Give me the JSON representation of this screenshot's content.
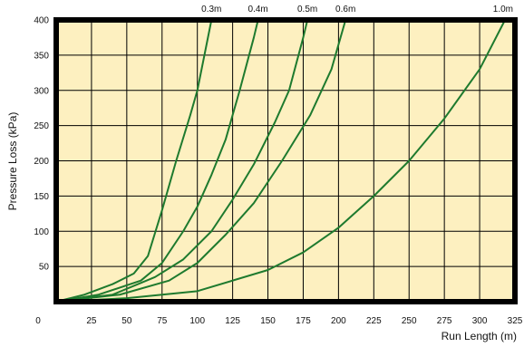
{
  "chart_data": {
    "type": "line",
    "title": "",
    "xlabel": "Run Length (m)",
    "ylabel": "Pressure Loss (kPa)",
    "xlim": [
      0,
      325
    ],
    "ylim": [
      0,
      400
    ],
    "x_ticks": [
      "0",
      "25",
      "50",
      "75",
      "100",
      "125",
      "150",
      "175",
      "200",
      "225",
      "250",
      "275",
      "300",
      "325"
    ],
    "y_ticks": [
      "50",
      "100",
      "150",
      "200",
      "250",
      "300",
      "350",
      "400"
    ],
    "grid": true,
    "colors": {
      "plot_background": "#fdf0c0",
      "line": "#1e7a2e",
      "frame": "#000000",
      "grid": "#000000"
    },
    "series": [
      {
        "name": "0.3m",
        "x": [
          0,
          20,
          40,
          55,
          65,
          75,
          85,
          95,
          100,
          105,
          110
        ],
        "y": [
          0,
          10,
          25,
          40,
          65,
          130,
          200,
          265,
          300,
          350,
          400
        ]
      },
      {
        "name": "0.4m",
        "x": [
          0,
          30,
          60,
          75,
          90,
          100,
          110,
          120,
          130,
          140,
          143
        ],
        "y": [
          0,
          10,
          30,
          55,
          100,
          135,
          180,
          230,
          300,
          375,
          400
        ]
      },
      {
        "name": "0.5m",
        "x": [
          0,
          40,
          70,
          90,
          110,
          125,
          140,
          155,
          165,
          175,
          178
        ],
        "y": [
          0,
          10,
          35,
          60,
          100,
          145,
          195,
          255,
          300,
          375,
          400
        ]
      },
      {
        "name": "0.6m",
        "x": [
          0,
          45,
          80,
          100,
          120,
          140,
          160,
          180,
          195,
          205
        ],
        "y": [
          0,
          10,
          30,
          55,
          95,
          140,
          200,
          265,
          330,
          400
        ]
      },
      {
        "name": "1.0m",
        "x": [
          0,
          50,
          100,
          150,
          175,
          200,
          225,
          250,
          275,
          300,
          318
        ],
        "y": [
          0,
          5,
          15,
          45,
          70,
          105,
          150,
          200,
          260,
          330,
          400
        ]
      }
    ]
  }
}
